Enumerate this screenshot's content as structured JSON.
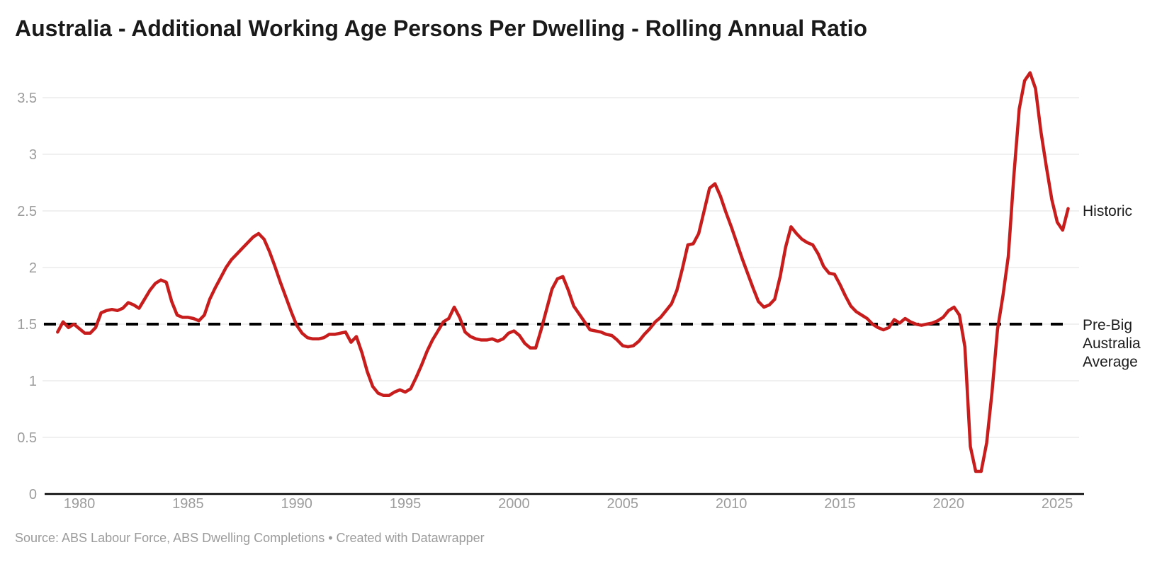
{
  "header": {
    "title": "Australia - Additional Working Age Persons Per Dwelling - Rolling Annual Ratio"
  },
  "footer": {
    "source": "Source: ABS Labour Force, ABS Dwelling Completions • Created with Datawrapper"
  },
  "annotations": {
    "historic_label": "Historic",
    "prebig_label": "Pre-Big Australia Average"
  },
  "colors": {
    "background": "#ffffff",
    "title": "#1a1a1a",
    "series_red": "#c71e1d",
    "gridline": "#e7e7e7",
    "axis_line": "#000000",
    "baseline_dash": "#000000",
    "tick_label": "#9c9c9c",
    "annotation_text": "#1d1d1d",
    "source_text": "#9b9b9b"
  },
  "chart_data": {
    "type": "line",
    "title": "Australia - Additional Working Age Persons Per Dwelling - Rolling Annual Ratio",
    "xlabel": "",
    "ylabel": "",
    "x_domain": [
      1979.0,
      2025.5
    ],
    "ylim": [
      0,
      3.8
    ],
    "grid": true,
    "legend_position": "right-inline",
    "x_ticks": [
      {
        "value": 1980,
        "label": "1980"
      },
      {
        "value": 1985,
        "label": "1985"
      },
      {
        "value": 1990,
        "label": "1990"
      },
      {
        "value": 1995,
        "label": "1995"
      },
      {
        "value": 2000,
        "label": "2000"
      },
      {
        "value": 2005,
        "label": "2005"
      },
      {
        "value": 2010,
        "label": "2010"
      },
      {
        "value": 2015,
        "label": "2015"
      },
      {
        "value": 2020,
        "label": "2020"
      },
      {
        "value": 2025,
        "label": "2025"
      }
    ],
    "y_ticks": [
      {
        "value": 0,
        "label": "0"
      },
      {
        "value": 0.5,
        "label": "0.5"
      },
      {
        "value": 1,
        "label": "1"
      },
      {
        "value": 1.5,
        "label": "1.5"
      },
      {
        "value": 2,
        "label": "2"
      },
      {
        "value": 2.5,
        "label": "2.5"
      },
      {
        "value": 3,
        "label": "3"
      },
      {
        "value": 3.5,
        "label": "3.5"
      }
    ],
    "baseline": {
      "value": 1.5,
      "label": "Pre-Big Australia Average",
      "style": "dashed",
      "color": "#000000"
    },
    "series": [
      {
        "name": "Historic",
        "color": "#c71e1d",
        "points": [
          [
            1979.0,
            1.43
          ],
          [
            1979.25,
            1.52
          ],
          [
            1979.5,
            1.47
          ],
          [
            1979.75,
            1.5
          ],
          [
            1980.0,
            1.46
          ],
          [
            1980.25,
            1.42
          ],
          [
            1980.5,
            1.42
          ],
          [
            1980.75,
            1.47
          ],
          [
            1981.0,
            1.6
          ],
          [
            1981.25,
            1.62
          ],
          [
            1981.5,
            1.63
          ],
          [
            1981.75,
            1.62
          ],
          [
            1982.0,
            1.64
          ],
          [
            1982.25,
            1.69
          ],
          [
            1982.5,
            1.67
          ],
          [
            1982.75,
            1.64
          ],
          [
            1983.0,
            1.72
          ],
          [
            1983.25,
            1.8
          ],
          [
            1983.5,
            1.86
          ],
          [
            1983.75,
            1.89
          ],
          [
            1984.0,
            1.87
          ],
          [
            1984.25,
            1.7
          ],
          [
            1984.5,
            1.58
          ],
          [
            1984.75,
            1.56
          ],
          [
            1985.0,
            1.56
          ],
          [
            1985.25,
            1.55
          ],
          [
            1985.5,
            1.53
          ],
          [
            1985.75,
            1.58
          ],
          [
            1986.0,
            1.72
          ],
          [
            1986.25,
            1.82
          ],
          [
            1986.5,
            1.91
          ],
          [
            1986.75,
            2.0
          ],
          [
            1987.0,
            2.07
          ],
          [
            1987.25,
            2.12
          ],
          [
            1987.5,
            2.17
          ],
          [
            1987.75,
            2.22
          ],
          [
            1988.0,
            2.27
          ],
          [
            1988.25,
            2.3
          ],
          [
            1988.5,
            2.25
          ],
          [
            1988.75,
            2.14
          ],
          [
            1989.0,
            2.01
          ],
          [
            1989.25,
            1.87
          ],
          [
            1989.5,
            1.74
          ],
          [
            1989.75,
            1.61
          ],
          [
            1990.0,
            1.49
          ],
          [
            1990.25,
            1.42
          ],
          [
            1990.5,
            1.38
          ],
          [
            1990.75,
            1.37
          ],
          [
            1991.0,
            1.37
          ],
          [
            1991.25,
            1.38
          ],
          [
            1991.5,
            1.41
          ],
          [
            1991.75,
            1.41
          ],
          [
            1992.0,
            1.42
          ],
          [
            1992.25,
            1.43
          ],
          [
            1992.5,
            1.34
          ],
          [
            1992.75,
            1.39
          ],
          [
            1993.0,
            1.25
          ],
          [
            1993.25,
            1.08
          ],
          [
            1993.5,
            0.95
          ],
          [
            1993.75,
            0.89
          ],
          [
            1994.0,
            0.87
          ],
          [
            1994.25,
            0.87
          ],
          [
            1994.5,
            0.9
          ],
          [
            1994.75,
            0.92
          ],
          [
            1995.0,
            0.9
          ],
          [
            1995.25,
            0.93
          ],
          [
            1995.5,
            1.03
          ],
          [
            1995.75,
            1.14
          ],
          [
            1996.0,
            1.26
          ],
          [
            1996.25,
            1.36
          ],
          [
            1996.5,
            1.44
          ],
          [
            1996.75,
            1.52
          ],
          [
            1997.0,
            1.55
          ],
          [
            1997.25,
            1.65
          ],
          [
            1997.5,
            1.56
          ],
          [
            1997.75,
            1.43
          ],
          [
            1998.0,
            1.39
          ],
          [
            1998.25,
            1.37
          ],
          [
            1998.5,
            1.36
          ],
          [
            1998.75,
            1.36
          ],
          [
            1999.0,
            1.37
          ],
          [
            1999.25,
            1.35
          ],
          [
            1999.5,
            1.37
          ],
          [
            1999.75,
            1.42
          ],
          [
            2000.0,
            1.44
          ],
          [
            2000.25,
            1.4
          ],
          [
            2000.5,
            1.33
          ],
          [
            2000.75,
            1.29
          ],
          [
            2001.0,
            1.29
          ],
          [
            2001.25,
            1.45
          ],
          [
            2001.5,
            1.63
          ],
          [
            2001.75,
            1.81
          ],
          [
            2002.0,
            1.9
          ],
          [
            2002.25,
            1.92
          ],
          [
            2002.5,
            1.8
          ],
          [
            2002.75,
            1.66
          ],
          [
            2003.0,
            1.59
          ],
          [
            2003.25,
            1.52
          ],
          [
            2003.5,
            1.45
          ],
          [
            2003.75,
            1.44
          ],
          [
            2004.0,
            1.43
          ],
          [
            2004.25,
            1.41
          ],
          [
            2004.5,
            1.4
          ],
          [
            2004.75,
            1.36
          ],
          [
            2005.0,
            1.31
          ],
          [
            2005.25,
            1.3
          ],
          [
            2005.5,
            1.31
          ],
          [
            2005.75,
            1.35
          ],
          [
            2006.0,
            1.41
          ],
          [
            2006.25,
            1.46
          ],
          [
            2006.5,
            1.52
          ],
          [
            2006.75,
            1.56
          ],
          [
            2007.0,
            1.62
          ],
          [
            2007.25,
            1.68
          ],
          [
            2007.5,
            1.8
          ],
          [
            2007.75,
            1.99
          ],
          [
            2008.0,
            2.2
          ],
          [
            2008.25,
            2.21
          ],
          [
            2008.5,
            2.3
          ],
          [
            2008.75,
            2.5
          ],
          [
            2009.0,
            2.7
          ],
          [
            2009.25,
            2.74
          ],
          [
            2009.5,
            2.63
          ],
          [
            2009.75,
            2.49
          ],
          [
            2010.0,
            2.36
          ],
          [
            2010.25,
            2.22
          ],
          [
            2010.5,
            2.08
          ],
          [
            2010.75,
            1.95
          ],
          [
            2011.0,
            1.82
          ],
          [
            2011.25,
            1.7
          ],
          [
            2011.5,
            1.65
          ],
          [
            2011.75,
            1.67
          ],
          [
            2012.0,
            1.72
          ],
          [
            2012.25,
            1.92
          ],
          [
            2012.5,
            2.18
          ],
          [
            2012.75,
            2.36
          ],
          [
            2013.0,
            2.3
          ],
          [
            2013.25,
            2.25
          ],
          [
            2013.5,
            2.22
          ],
          [
            2013.75,
            2.2
          ],
          [
            2014.0,
            2.12
          ],
          [
            2014.25,
            2.01
          ],
          [
            2014.5,
            1.95
          ],
          [
            2014.75,
            1.94
          ],
          [
            2015.0,
            1.85
          ],
          [
            2015.25,
            1.75
          ],
          [
            2015.5,
            1.66
          ],
          [
            2015.75,
            1.61
          ],
          [
            2016.0,
            1.58
          ],
          [
            2016.25,
            1.55
          ],
          [
            2016.5,
            1.5
          ],
          [
            2016.75,
            1.47
          ],
          [
            2017.0,
            1.45
          ],
          [
            2017.25,
            1.47
          ],
          [
            2017.5,
            1.54
          ],
          [
            2017.75,
            1.51
          ],
          [
            2018.0,
            1.55
          ],
          [
            2018.25,
            1.52
          ],
          [
            2018.5,
            1.5
          ],
          [
            2018.75,
            1.49
          ],
          [
            2019.0,
            1.5
          ],
          [
            2019.25,
            1.51
          ],
          [
            2019.5,
            1.53
          ],
          [
            2019.75,
            1.56
          ],
          [
            2020.0,
            1.62
          ],
          [
            2020.25,
            1.65
          ],
          [
            2020.5,
            1.58
          ],
          [
            2020.75,
            1.3
          ],
          [
            2021.0,
            0.42
          ],
          [
            2021.25,
            0.2
          ],
          [
            2021.5,
            0.2
          ],
          [
            2021.75,
            0.45
          ],
          [
            2022.0,
            0.9
          ],
          [
            2022.25,
            1.45
          ],
          [
            2022.5,
            1.75
          ],
          [
            2022.75,
            2.1
          ],
          [
            2023.0,
            2.8
          ],
          [
            2023.25,
            3.4
          ],
          [
            2023.5,
            3.65
          ],
          [
            2023.75,
            3.72
          ],
          [
            2024.0,
            3.58
          ],
          [
            2024.25,
            3.2
          ],
          [
            2024.5,
            2.89
          ],
          [
            2024.75,
            2.6
          ],
          [
            2025.0,
            2.4
          ],
          [
            2025.25,
            2.33
          ],
          [
            2025.5,
            2.52
          ]
        ]
      }
    ]
  }
}
